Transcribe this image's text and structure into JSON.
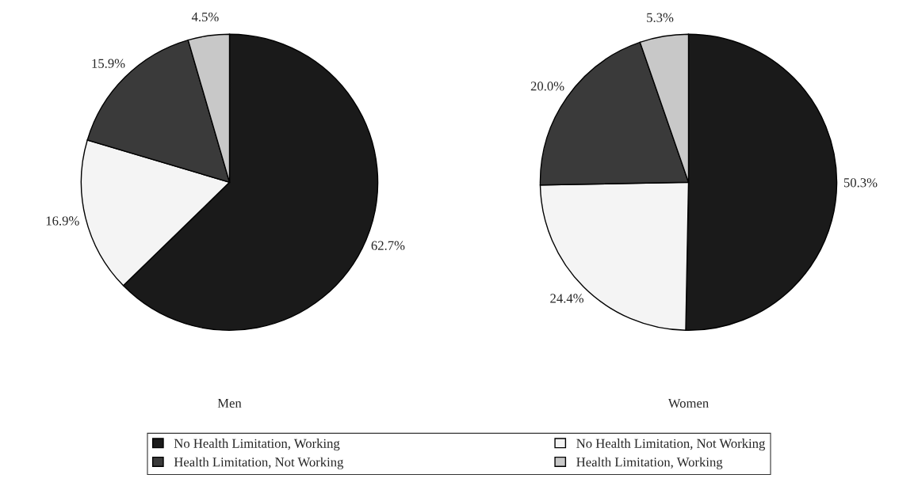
{
  "chart_data": [
    {
      "type": "pie",
      "xlabel": "Men",
      "categories": [
        "No Health Limitation, Working",
        "No Health Limitation, Not Working",
        "Health Limitation, Not Working",
        "Health Limitation, Working"
      ],
      "values": [
        62.7,
        16.9,
        15.9,
        4.5
      ],
      "value_labels": [
        "62.7%",
        "16.9%",
        "15.9%",
        "4.5%"
      ],
      "colors": [
        "#1a1a1a",
        "#f4f4f4",
        "#3a3a3a",
        "#c8c8c8"
      ],
      "legend": "bottom"
    },
    {
      "type": "pie",
      "xlabel": "Women",
      "categories": [
        null,
        null,
        null,
        null
      ],
      "values": [
        50.3,
        24.4,
        20.0,
        5.3
      ],
      "value_labels": [
        "50.3%",
        "24.4%",
        "20.0%",
        "5.3%"
      ],
      "colors": [
        "#1a1a1a",
        "#f4f4f4",
        "#3a3a3a",
        "#c8c8c8"
      ]
    }
  ]
}
